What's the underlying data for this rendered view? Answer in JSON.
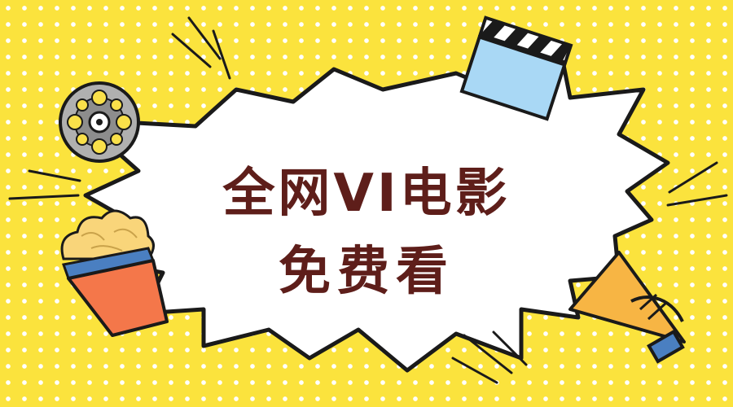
{
  "banner": {
    "line1": "全网VI电影",
    "line2": "免费看"
  },
  "colors": {
    "background": "#fbe33d",
    "dots": "#ffffff",
    "text": "#5e1e1a",
    "outline": "#1a1a1a",
    "popcorn_bucket": "#f4774a",
    "popcorn_band": "#4a7fc1",
    "popcorn": "#f9d57a",
    "clapper_board": "#a9d8f5",
    "film_reel": "#b0b0b0",
    "megaphone": "#f7b544"
  },
  "icons": [
    "film-reel-icon",
    "clapperboard-icon",
    "popcorn-icon",
    "megaphone-icon"
  ]
}
